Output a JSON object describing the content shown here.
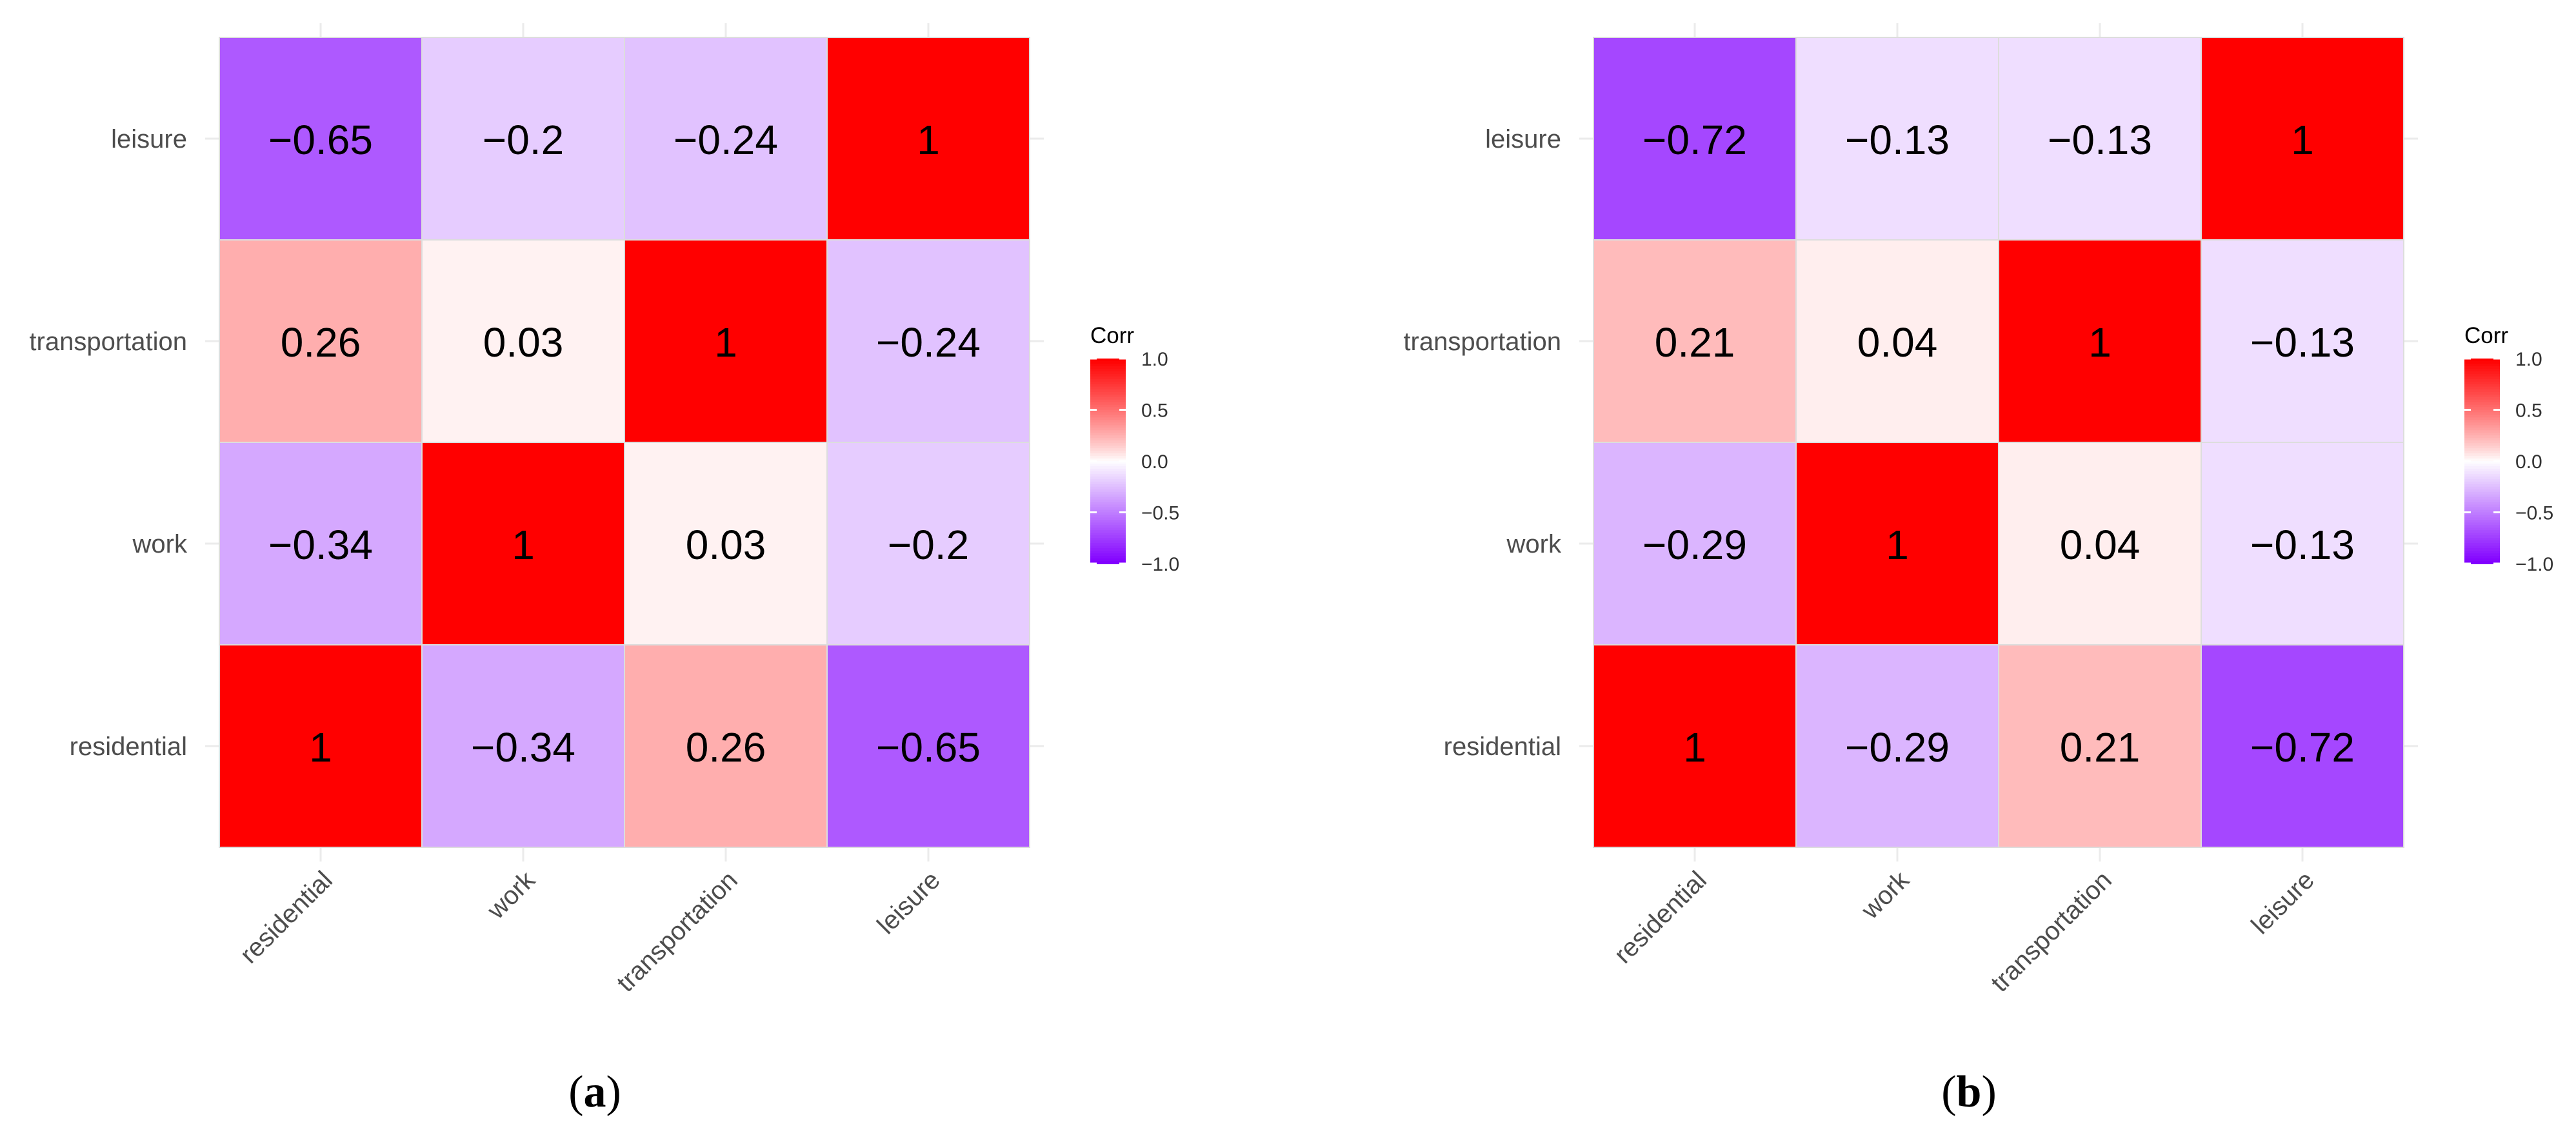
{
  "chart_data": [
    {
      "type": "heatmap",
      "panel_label": "a",
      "categories": [
        "residential",
        "work",
        "transportation",
        "leisure"
      ],
      "matrix": [
        [
          1,
          -0.34,
          0.26,
          -0.65
        ],
        [
          -0.34,
          1,
          0.03,
          -0.2
        ],
        [
          0.26,
          0.03,
          1,
          -0.24
        ],
        [
          -0.65,
          -0.2,
          -0.24,
          1
        ]
      ],
      "cell_labels": [
        [
          "1",
          "−0.34",
          "0.26",
          "−0.65"
        ],
        [
          "−0.34",
          "1",
          "0.03",
          "−0.2"
        ],
        [
          "0.26",
          "0.03",
          "1",
          "−0.24"
        ],
        [
          "−0.65",
          "−0.2",
          "−0.24",
          "1"
        ]
      ],
      "legend": {
        "title": "Corr",
        "ticks": [
          "1.0",
          "0.5",
          "0.0",
          "−0.5",
          "−1.0"
        ],
        "tick_values": [
          1.0,
          0.5,
          0.0,
          -0.5,
          -1.0
        ],
        "range": [
          -1,
          1
        ],
        "placement": "right"
      },
      "colors": {
        "low": "#0000ff",
        "mid": "#ffffff",
        "high": "#ff0000"
      },
      "grid": true
    },
    {
      "type": "heatmap",
      "panel_label": "b",
      "categories": [
        "residential",
        "work",
        "transportation",
        "leisure"
      ],
      "matrix": [
        [
          1,
          -0.29,
          0.21,
          -0.72
        ],
        [
          -0.29,
          1,
          0.04,
          -0.13
        ],
        [
          0.21,
          0.04,
          1,
          -0.13
        ],
        [
          -0.72,
          -0.13,
          -0.13,
          1
        ]
      ],
      "cell_labels": [
        [
          "1",
          "−0.29",
          "0.21",
          "−0.72"
        ],
        [
          "−0.29",
          "1",
          "0.04",
          "−0.13"
        ],
        [
          "0.21",
          "0.04",
          "1",
          "−0.13"
        ],
        [
          "−0.72",
          "−0.13",
          "−0.13",
          "1"
        ]
      ],
      "legend": {
        "title": "Corr",
        "ticks": [
          "1.0",
          "0.5",
          "0.0",
          "−0.5",
          "−1.0"
        ],
        "tick_values": [
          1.0,
          0.5,
          0.0,
          -0.5,
          -1.0
        ],
        "range": [
          -1,
          1
        ],
        "placement": "right"
      },
      "colors": {
        "low": "#0000ff",
        "mid": "#ffffff",
        "high": "#ff0000"
      },
      "grid": true
    }
  ]
}
